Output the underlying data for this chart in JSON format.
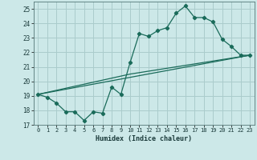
{
  "title": "",
  "xlabel": "Humidex (Indice chaleur)",
  "ylabel": "",
  "bg_color": "#cce8e8",
  "grid_color": "#aacccc",
  "line_color": "#1a6b5a",
  "xlim": [
    -0.5,
    23.5
  ],
  "ylim": [
    17,
    25.5
  ],
  "yticks": [
    17,
    18,
    19,
    20,
    21,
    22,
    23,
    24,
    25
  ],
  "xticks": [
    0,
    1,
    2,
    3,
    4,
    5,
    6,
    7,
    8,
    9,
    10,
    11,
    12,
    13,
    14,
    15,
    16,
    17,
    18,
    19,
    20,
    21,
    22,
    23
  ],
  "series1_x": [
    0,
    1,
    2,
    3,
    4,
    5,
    6,
    7,
    8,
    9,
    10,
    11,
    12,
    13,
    14,
    15,
    16,
    17,
    18,
    19,
    20,
    21,
    22,
    23
  ],
  "series1_y": [
    19.1,
    18.9,
    18.5,
    17.9,
    17.9,
    17.3,
    17.9,
    17.8,
    19.6,
    19.1,
    21.3,
    23.3,
    23.1,
    23.5,
    23.7,
    24.7,
    25.2,
    24.4,
    24.4,
    24.1,
    22.9,
    22.4,
    21.8,
    21.8
  ],
  "series2_x": [
    0,
    10,
    23
  ],
  "series2_y": [
    19.1,
    20.5,
    21.8
  ],
  "series3_x": [
    0,
    23
  ],
  "series3_y": [
    19.1,
    21.8
  ]
}
